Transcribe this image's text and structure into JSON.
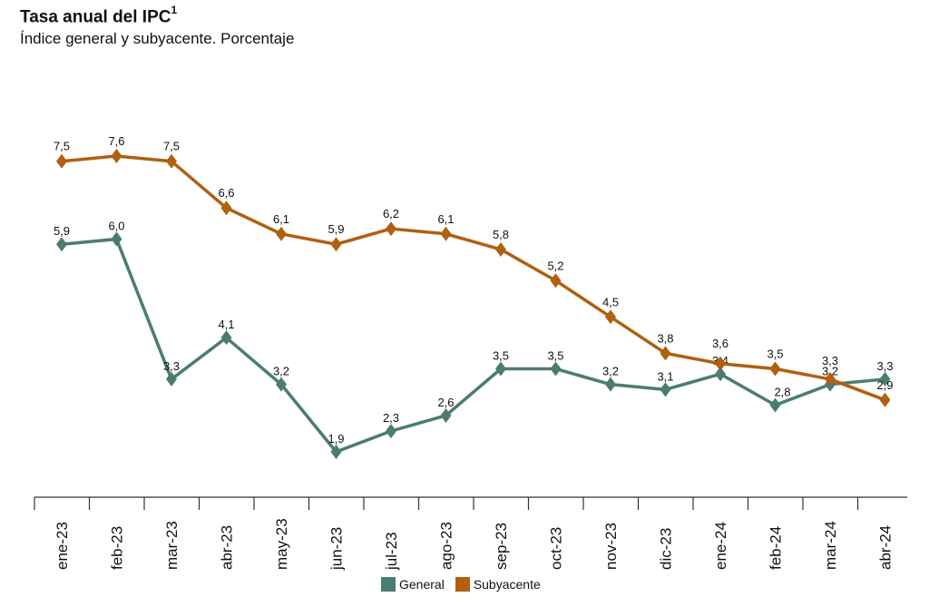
{
  "header": {
    "title": "Tasa anual del IPC",
    "title_sup": "1",
    "subtitle": "Índice general y subyacente. Porcentaje"
  },
  "chart_data": {
    "type": "line",
    "categories": [
      "ene-23",
      "feb-23",
      "mar-23",
      "abr-23",
      "may-23",
      "jun-23",
      "jul-23",
      "ago-23",
      "sep-23",
      "oct-23",
      "nov-23",
      "dic-23",
      "ene-24",
      "feb-24",
      "mar-24",
      "abr-24"
    ],
    "series": [
      {
        "name": "General",
        "color": "#4a7d70",
        "values": [
          5.9,
          6.0,
          3.3,
          4.1,
          3.2,
          1.9,
          2.3,
          2.6,
          3.5,
          3.5,
          3.2,
          3.1,
          3.4,
          2.8,
          3.2,
          3.3
        ],
        "labels": [
          "5,9",
          "6,0",
          "3,3",
          "4,1",
          "3,2",
          "1,9",
          "2,3",
          "2,6",
          "3,5",
          "3,5",
          "3,2",
          "3,1",
          "3,4",
          "2,8",
          "3,2",
          "3,3"
        ]
      },
      {
        "name": "Subyacente",
        "color": "#b0600f",
        "values": [
          7.5,
          7.6,
          7.5,
          6.6,
          6.1,
          5.9,
          6.2,
          6.1,
          5.8,
          5.2,
          4.5,
          3.8,
          3.6,
          3.5,
          3.3,
          2.9
        ],
        "labels": [
          "7,5",
          "7,6",
          "7,5",
          "6,6",
          "6,1",
          "5,9",
          "6,2",
          "6,1",
          "5,8",
          "5,2",
          "4,5",
          "3,8",
          "3,6",
          "3,5",
          "3,3",
          "2,9"
        ]
      }
    ],
    "title": "Tasa anual del IPC",
    "subtitle": "Índice general y subyacente. Porcentaje",
    "xlabel": "",
    "ylabel": "",
    "ylim": [
      0.0,
      9.5
    ],
    "grid": false,
    "legend_position": "bottom-center"
  }
}
